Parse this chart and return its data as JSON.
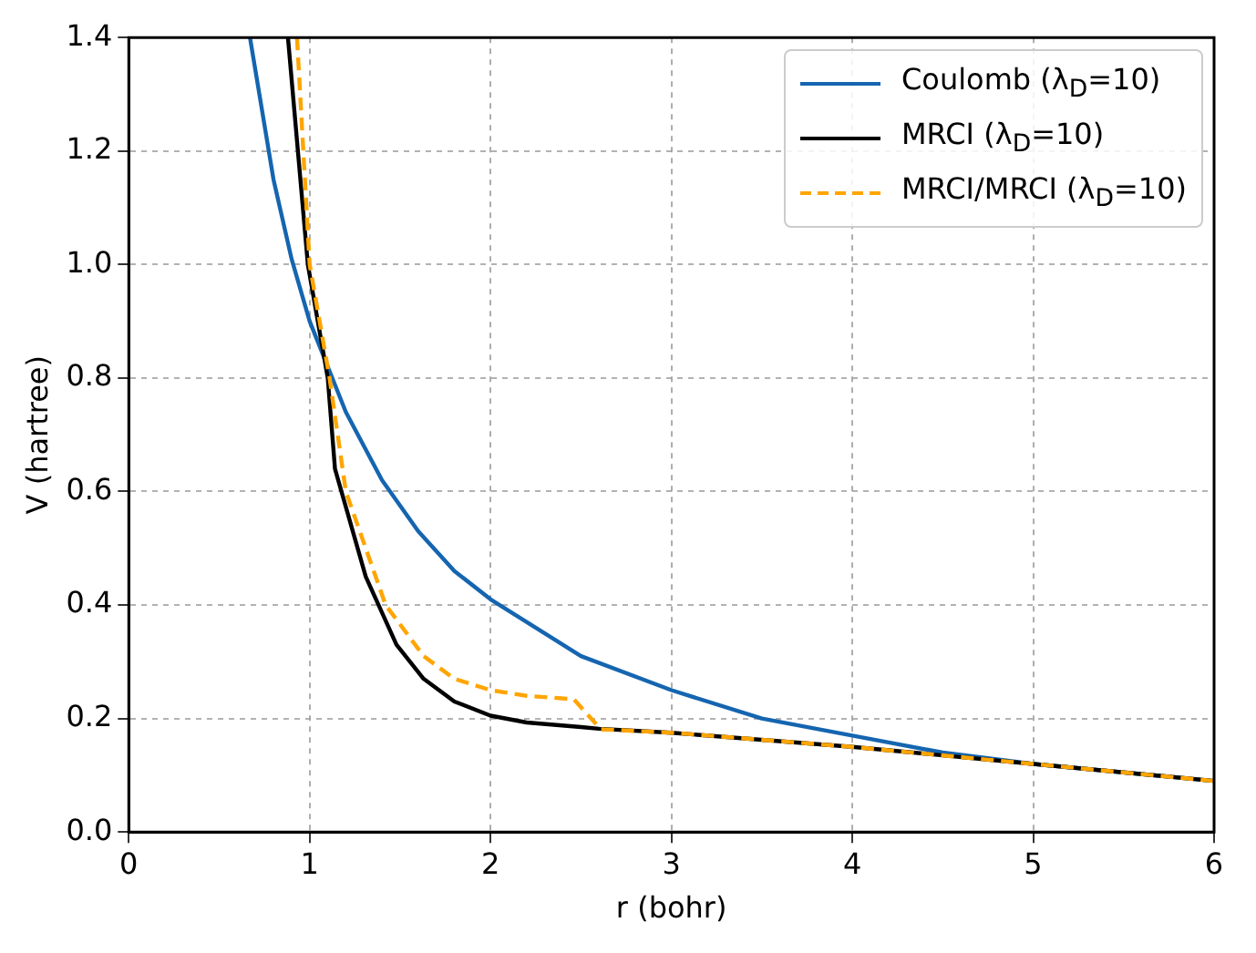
{
  "chart_data": {
    "type": "line",
    "xlabel": "r (bohr)",
    "ylabel": "V (hartree)",
    "xlim": [
      0,
      6
    ],
    "xticks": [
      0,
      1,
      2,
      3,
      4,
      5,
      6
    ],
    "ylim": [
      0,
      1.4
    ],
    "yticks": [
      {
        "value": 0,
        "label": "0.0"
      },
      {
        "value": 0.2,
        "label": "0.2"
      },
      {
        "value": 0.4,
        "label": "0.4"
      },
      {
        "value": 0.6,
        "label": "0.6"
      },
      {
        "value": 0.8,
        "label": "0.8"
      },
      {
        "value": 1,
        "label": "1.0"
      },
      {
        "value": 1.2,
        "label": "1.2"
      },
      {
        "value": 1.4,
        "label": "1.4"
      }
    ],
    "grid": true,
    "legend": "top right",
    "marker": "none",
    "series": [
      {
        "name": "Coulomb (λ$_{D}$=10)",
        "color": "#1565b0",
        "line_style": "solid",
        "x": [
          0.67,
          0.8,
          0.9,
          1.0,
          1.2,
          1.4,
          1.6,
          1.8,
          2.0,
          2.5,
          3.0,
          3.5,
          4.0,
          4.5,
          5.0,
          5.5,
          6.0
        ],
        "values": [
          1.4,
          1.15,
          1.01,
          0.9,
          0.74,
          0.62,
          0.53,
          0.46,
          0.41,
          0.31,
          0.25,
          0.2,
          0.17,
          0.14,
          0.12,
          0.105,
          0.09
        ]
      },
      {
        "name": "MRCI (λ$_{D}$=10)",
        "color": "#000000",
        "line_style": "solid",
        "x": [
          0.88,
          0.99,
          1.1,
          1.14,
          1.31,
          1.48,
          1.63,
          1.8,
          2.0,
          2.2,
          2.5,
          2.6,
          3.0,
          4.0,
          5.0,
          6.0
        ],
        "values": [
          1.4,
          1.0,
          0.8,
          0.64,
          0.45,
          0.33,
          0.27,
          0.23,
          0.205,
          0.193,
          0.185,
          0.182,
          0.175,
          0.15,
          0.12,
          0.09
        ]
      },
      {
        "name": "MRCI/MRCI (λ$_{D}$=10)",
        "color": "#ffa500",
        "line_style": "dashed",
        "x": [
          0.93,
          1.0,
          1.11,
          1.2,
          1.42,
          1.63,
          1.8,
          2.0,
          2.2,
          2.46,
          2.61,
          3.0,
          4.0,
          5.0,
          6.0
        ],
        "values": [
          1.4,
          1.0,
          0.8,
          0.6,
          0.4,
          0.31,
          0.27,
          0.25,
          0.24,
          0.234,
          0.181,
          0.175,
          0.15,
          0.12,
          0.09
        ]
      }
    ]
  }
}
